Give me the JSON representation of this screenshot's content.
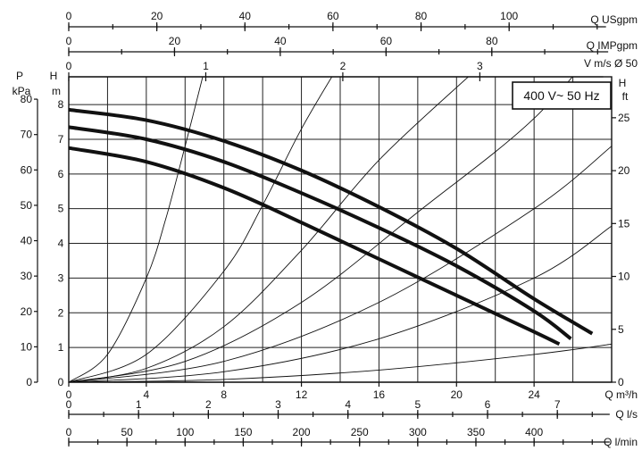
{
  "chart_data": {
    "type": "line",
    "annotation": "400 V~ 50 Hz",
    "grid": true,
    "x_axis": {
      "label": "Q m³/h",
      "range": [
        0,
        28
      ],
      "ticks": [
        "0",
        "4",
        "8",
        "12",
        "16",
        "20",
        "24"
      ],
      "tick_values": [
        0,
        4,
        8,
        12,
        16,
        20,
        24
      ]
    },
    "y_axis_left": {
      "label_top": "H",
      "label_bottom": "m",
      "range": [
        0,
        8.8
      ],
      "ticks": [
        "0",
        "1",
        "2",
        "3",
        "4",
        "5",
        "6",
        "7",
        "8"
      ],
      "tick_values": [
        0,
        1,
        2,
        3,
        4,
        5,
        6,
        7,
        8
      ]
    },
    "y_axis_pressure": {
      "label_top": "P",
      "label_bottom": "kPa",
      "ticks": [
        "0",
        "10",
        "20",
        "30",
        "40",
        "50",
        "60",
        "70",
        "80"
      ],
      "tick_values": [
        0,
        10,
        20,
        30,
        40,
        50,
        60,
        70,
        80
      ],
      "per_unit": "kPa = 9.81 × m"
    },
    "y_axis_right": {
      "label_top": "H",
      "label_bottom": "ft",
      "ticks": [
        "0",
        "5",
        "10",
        "15",
        "20",
        "25"
      ],
      "tick_values": [
        0,
        5,
        10,
        15,
        20,
        25
      ],
      "per_unit": "ft = 3.2808 × m"
    },
    "top_axes": [
      {
        "label": "Q USgpm",
        "ticks": [
          "0",
          "20",
          "40",
          "60",
          "80",
          "100"
        ],
        "tick_values": [
          0,
          20,
          40,
          60,
          80,
          100
        ],
        "minor_step": 10,
        "max": 122,
        "per_unit": 4.4029
      },
      {
        "label": "Q IMPgpm",
        "ticks": [
          "0",
          "20",
          "40",
          "60",
          "80"
        ],
        "tick_values": [
          0,
          20,
          40,
          60,
          80
        ],
        "minor_step": 10,
        "max": 102,
        "per_unit": 3.6662
      },
      {
        "label": "V m/s Ø 50",
        "ticks": [
          "0",
          "1",
          "2",
          "3"
        ],
        "tick_values": [
          0,
          1,
          2,
          3
        ],
        "max": 3.9,
        "per_unit": 0.1415
      }
    ],
    "bottom_axes": [
      {
        "label": "Q l/s",
        "ticks": [
          "0",
          "1",
          "2",
          "3",
          "4",
          "5",
          "6",
          "7"
        ],
        "tick_values": [
          0,
          1,
          2,
          3,
          4,
          5,
          6,
          7
        ],
        "minor_step": 0.5,
        "max": 7.75,
        "per_unit": 0.27778
      },
      {
        "label": "Q l/min",
        "ticks": [
          "0",
          "50",
          "100",
          "150",
          "200",
          "250",
          "300",
          "350",
          "400"
        ],
        "tick_values": [
          0,
          50,
          100,
          150,
          200,
          250,
          300,
          350,
          400
        ],
        "minor_step": 25,
        "max": 465,
        "per_unit": 16.667
      }
    ],
    "series": [
      {
        "x": [
          0,
          4,
          8,
          12,
          16,
          20,
          24,
          25.3
        ],
        "y": [
          6.75,
          6.35,
          5.6,
          4.6,
          3.55,
          2.5,
          1.45,
          1.1
        ]
      },
      {
        "x": [
          0,
          4,
          8,
          12,
          16,
          20,
          24,
          25.9
        ],
        "y": [
          7.35,
          7.0,
          6.35,
          5.45,
          4.45,
          3.35,
          2.05,
          1.25
        ]
      },
      {
        "x": [
          0,
          4,
          8,
          12,
          16,
          20,
          24,
          27.0
        ],
        "y": [
          7.85,
          7.55,
          6.95,
          6.1,
          5.05,
          3.85,
          2.4,
          1.4
        ]
      }
    ],
    "system_curves": [
      {
        "x": [
          0,
          2,
          4,
          5,
          6,
          7
        ],
        "y": [
          0,
          0.8,
          3.0,
          4.7,
          6.8,
          9.0
        ]
      },
      {
        "x": [
          0,
          4,
          8,
          10,
          12,
          14
        ],
        "y": [
          0,
          0.8,
          3.2,
          5.1,
          7.3,
          9.2
        ]
      },
      {
        "x": [
          0,
          4,
          8,
          12,
          16,
          21
        ],
        "y": [
          0,
          0.4,
          1.6,
          3.8,
          6.4,
          9.0
        ]
      },
      {
        "x": [
          0,
          6,
          12,
          18,
          24,
          28
        ],
        "y": [
          0,
          0.6,
          2.3,
          4.9,
          7.6,
          10.2
        ]
      },
      {
        "x": [
          0,
          8,
          16,
          24,
          28
        ],
        "y": [
          0,
          0.6,
          2.3,
          5.0,
          6.8
        ]
      },
      {
        "x": [
          0,
          8,
          16,
          24,
          28
        ],
        "y": [
          0,
          0.3,
          1.25,
          3.0,
          4.5
        ]
      },
      {
        "x": [
          0,
          8,
          16,
          24,
          28
        ],
        "y": [
          0,
          0.08,
          0.35,
          0.8,
          1.1
        ]
      }
    ]
  }
}
